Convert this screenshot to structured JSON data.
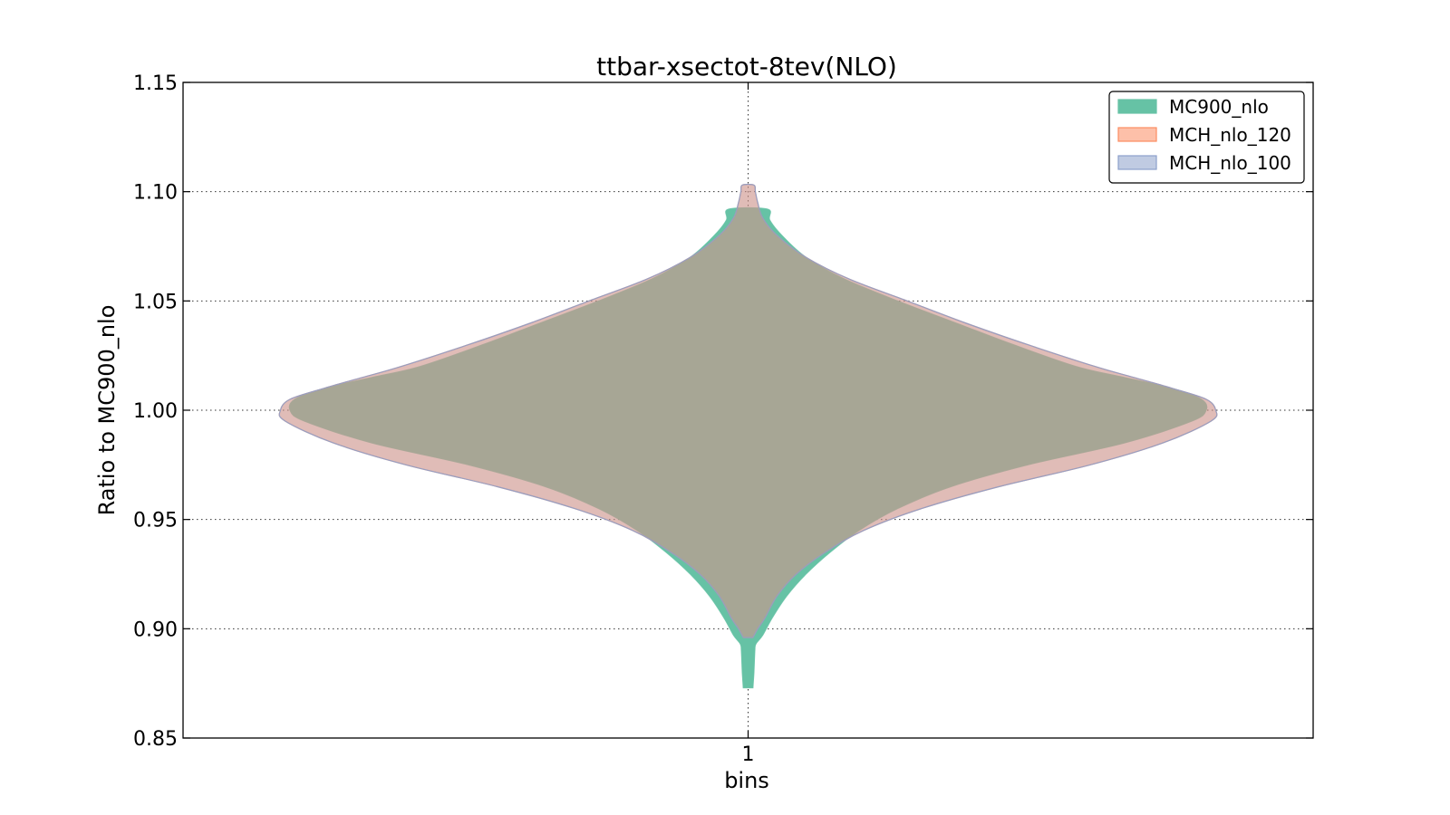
{
  "chart_data": {
    "type": "violin",
    "title": "ttbar-xsectot-8tev(NLO)",
    "xlabel": "bins",
    "ylabel": "Ratio to MC900_nlo",
    "x_ticks": [
      "1"
    ],
    "ylim": [
      0.85,
      1.15
    ],
    "y_ticks": [
      0.85,
      0.9,
      0.95,
      1.0,
      1.05,
      1.1,
      1.15
    ],
    "y_tick_labels": [
      "0.85",
      "0.90",
      "0.95",
      "1.00",
      "1.05",
      "1.10",
      "1.15"
    ],
    "grid": true,
    "legend_position": "top-right",
    "series": [
      {
        "name": "MC900_nlo",
        "color": "#66c2a5",
        "fill_opacity": 1.0,
        "min": 0.873,
        "max": 1.092,
        "profile": [
          [
            0.873,
            0.01
          ],
          [
            0.88,
            0.012
          ],
          [
            0.89,
            0.014
          ],
          [
            0.893,
            0.016
          ],
          [
            0.897,
            0.03
          ],
          [
            0.905,
            0.05
          ],
          [
            0.915,
            0.08
          ],
          [
            0.925,
            0.12
          ],
          [
            0.935,
            0.17
          ],
          [
            0.945,
            0.23
          ],
          [
            0.955,
            0.31
          ],
          [
            0.965,
            0.42
          ],
          [
            0.975,
            0.58
          ],
          [
            0.985,
            0.78
          ],
          [
            0.995,
            0.92
          ],
          [
            1.0,
            0.95
          ],
          [
            1.005,
            0.94
          ],
          [
            1.01,
            0.88
          ],
          [
            1.015,
            0.78
          ],
          [
            1.02,
            0.68
          ],
          [
            1.03,
            0.55
          ],
          [
            1.04,
            0.43
          ],
          [
            1.05,
            0.31
          ],
          [
            1.06,
            0.2
          ],
          [
            1.07,
            0.12
          ],
          [
            1.08,
            0.07
          ],
          [
            1.087,
            0.045
          ],
          [
            1.092,
            0.04
          ]
        ]
      },
      {
        "name": "MCH_nlo_120",
        "color": "#fc8d62",
        "fill_opacity": 0.5,
        "min": 0.896,
        "max": 1.103,
        "profile": [
          [
            0.896,
            0.01
          ],
          [
            0.9,
            0.02
          ],
          [
            0.905,
            0.035
          ],
          [
            0.915,
            0.06
          ],
          [
            0.925,
            0.1
          ],
          [
            0.935,
            0.16
          ],
          [
            0.945,
            0.24
          ],
          [
            0.955,
            0.36
          ],
          [
            0.965,
            0.52
          ],
          [
            0.975,
            0.71
          ],
          [
            0.985,
            0.86
          ],
          [
            0.995,
            0.96
          ],
          [
            1.0,
            0.97
          ],
          [
            1.005,
            0.95
          ],
          [
            1.01,
            0.88
          ],
          [
            1.015,
            0.8
          ],
          [
            1.02,
            0.72
          ],
          [
            1.03,
            0.58
          ],
          [
            1.04,
            0.45
          ],
          [
            1.05,
            0.33
          ],
          [
            1.06,
            0.21
          ],
          [
            1.07,
            0.12
          ],
          [
            1.08,
            0.06
          ],
          [
            1.088,
            0.03
          ],
          [
            1.095,
            0.02
          ],
          [
            1.1,
            0.015
          ],
          [
            1.103,
            0.012
          ]
        ]
      },
      {
        "name": "MCH_nlo_100",
        "color": "#8da0cb",
        "fill_opacity": 0.25,
        "min": 0.896,
        "max": 1.103,
        "profile": [
          [
            0.896,
            0.01
          ],
          [
            0.9,
            0.02
          ],
          [
            0.905,
            0.035
          ],
          [
            0.915,
            0.06
          ],
          [
            0.925,
            0.1
          ],
          [
            0.935,
            0.16
          ],
          [
            0.945,
            0.24
          ],
          [
            0.955,
            0.36
          ],
          [
            0.965,
            0.52
          ],
          [
            0.975,
            0.71
          ],
          [
            0.985,
            0.86
          ],
          [
            0.995,
            0.96
          ],
          [
            1.0,
            0.97
          ],
          [
            1.005,
            0.95
          ],
          [
            1.01,
            0.88
          ],
          [
            1.015,
            0.8
          ],
          [
            1.02,
            0.72
          ],
          [
            1.03,
            0.58
          ],
          [
            1.04,
            0.45
          ],
          [
            1.05,
            0.33
          ],
          [
            1.06,
            0.21
          ],
          [
            1.07,
            0.12
          ],
          [
            1.08,
            0.06
          ],
          [
            1.088,
            0.03
          ],
          [
            1.095,
            0.02
          ],
          [
            1.1,
            0.015
          ],
          [
            1.103,
            0.012
          ]
        ]
      }
    ]
  }
}
